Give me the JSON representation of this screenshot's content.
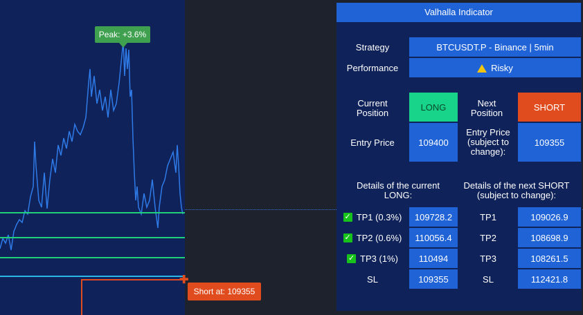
{
  "chart": {
    "peak_label": "Peak: +3.6%",
    "short_label": "Short at: 109355",
    "colors": {
      "tp_line": "#22d07a",
      "entry_line": "#2bb6e8",
      "short": "#e04c1e",
      "peak": "#3fa14f",
      "price_line": "#2f7be8"
    }
  },
  "panel": {
    "title": "Valhalla Indicator",
    "strategy_label": "Strategy",
    "strategy_value": "BTCUSDT.P - Binance | 5min",
    "performance_label": "Performance",
    "performance_value": "Risky",
    "performance_icon": "warning-icon",
    "current_position_label": "Current Position",
    "current_position_value": "LONG",
    "next_position_label": "Next Position",
    "next_position_value": "SHORT",
    "entry_price_label": "Entry Price",
    "entry_price_value": "109400",
    "next_entry_label": "Entry Price (subject to change):",
    "next_entry_value": "109355",
    "details_current_header": "Details of the current LONG:",
    "details_next_header": "Details of the next SHORT (subject to change):",
    "current_rows": [
      {
        "label": "TP1 (0.3%)",
        "value": "109728.2",
        "checked": true
      },
      {
        "label": "TP2 (0.6%)",
        "value": "110056.4",
        "checked": true
      },
      {
        "label": "TP3 (1%)",
        "value": "110494",
        "checked": true
      },
      {
        "label": "SL",
        "value": "109355",
        "checked": false
      }
    ],
    "next_rows": [
      {
        "label": "TP1",
        "value": "109026.9"
      },
      {
        "label": "TP2",
        "value": "108698.9"
      },
      {
        "label": "TP3",
        "value": "108261.5"
      },
      {
        "label": "SL",
        "value": "112421.8"
      }
    ]
  }
}
